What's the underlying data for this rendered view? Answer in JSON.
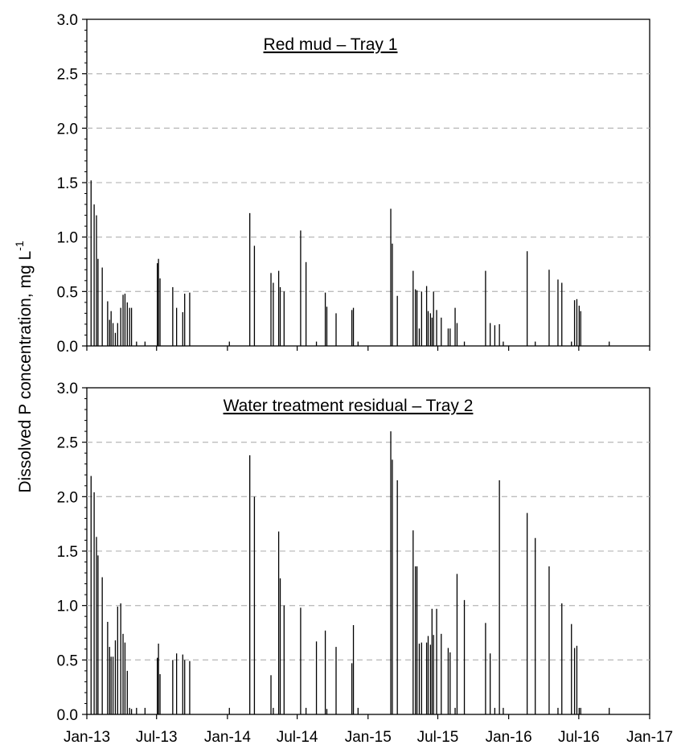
{
  "chart_data": {
    "type": "bar",
    "ylabel": "Dissolved P concentration, mg L",
    "ylabel_sup": "-1",
    "x_ticks": [
      "Jan-13",
      "Jul-13",
      "Jan-14",
      "Jul-14",
      "Jan-15",
      "Jul-15",
      "Jan-16",
      "Jul-16",
      "Jan-17"
    ],
    "x_range": [
      "2013-01-01",
      "2017-01-01"
    ],
    "ylim": [
      0,
      3.0
    ],
    "y_ticks": [
      "0.0",
      "0.5",
      "1.0",
      "1.5",
      "2.0",
      "2.5",
      "3.0"
    ],
    "grid": "dashed horizontal",
    "panels": [
      {
        "title": "Red mud – Tray 1",
        "x": [
          "2013-01-12",
          "2013-01-20",
          "2013-01-26",
          "2013-01-30",
          "2013-02-10",
          "2013-02-24",
          "2013-03-01",
          "2013-03-05",
          "2013-03-10",
          "2013-03-16",
          "2013-03-22",
          "2013-03-30",
          "2013-04-05",
          "2013-04-10",
          "2013-04-16",
          "2013-04-22",
          "2013-04-27",
          "2013-05-10",
          "2013-06-01",
          "2013-07-03",
          "2013-07-06",
          "2013-07-10",
          "2013-08-12",
          "2013-08-22",
          "2013-09-07",
          "2013-09-12",
          "2013-09-25",
          "2014-01-06",
          "2014-02-28",
          "2014-03-12",
          "2014-04-24",
          "2014-04-30",
          "2014-05-14",
          "2014-05-18",
          "2014-05-28",
          "2014-07-10",
          "2014-07-24",
          "2014-08-20",
          "2014-09-12",
          "2014-09-16",
          "2014-10-10",
          "2014-11-20",
          "2014-11-24",
          "2014-12-06",
          "2015-03-01",
          "2015-03-05",
          "2015-03-18",
          "2015-04-28",
          "2015-05-04",
          "2015-05-08",
          "2015-05-14",
          "2015-05-20",
          "2015-06-02",
          "2015-06-06",
          "2015-06-12",
          "2015-06-16",
          "2015-06-20",
          "2015-06-28",
          "2015-07-10",
          "2015-07-28",
          "2015-08-02",
          "2015-08-15",
          "2015-08-20",
          "2015-09-08",
          "2015-11-02",
          "2015-11-14",
          "2015-11-26",
          "2015-12-08",
          "2015-12-18",
          "2016-02-18",
          "2016-03-10",
          "2016-04-15",
          "2016-05-08",
          "2016-05-18",
          "2016-06-12",
          "2016-06-20",
          "2016-06-26",
          "2016-07-02",
          "2016-07-06",
          "2016-09-18"
        ],
        "values": [
          1.52,
          1.3,
          1.2,
          0.8,
          0.72,
          0.41,
          0.24,
          0.32,
          0.21,
          0.12,
          0.21,
          0.35,
          0.47,
          0.48,
          0.4,
          0.35,
          0.35,
          0.04,
          0.04,
          0.76,
          0.8,
          0.62,
          0.54,
          0.35,
          0.31,
          0.48,
          0.49,
          0.04,
          1.22,
          0.92,
          0.67,
          0.58,
          0.69,
          0.54,
          0.5,
          1.06,
          0.77,
          0.04,
          0.49,
          0.36,
          0.3,
          0.33,
          0.35,
          0.04,
          1.26,
          0.94,
          0.46,
          0.69,
          0.52,
          0.51,
          0.16,
          0.5,
          0.55,
          0.32,
          0.3,
          0.26,
          0.5,
          0.33,
          0.26,
          0.16,
          0.16,
          0.35,
          0.21,
          0.04,
          0.69,
          0.21,
          0.19,
          0.2,
          0.04,
          0.87,
          0.04,
          0.7,
          0.61,
          0.58,
          0.04,
          0.42,
          0.43,
          0.37,
          0.32,
          0.04
        ]
      },
      {
        "title": "Water treatment residual – Tray 2",
        "x": [
          "2013-01-12",
          "2013-01-20",
          "2013-01-26",
          "2013-01-30",
          "2013-02-10",
          "2013-02-24",
          "2013-03-01",
          "2013-03-05",
          "2013-03-10",
          "2013-03-16",
          "2013-03-22",
          "2013-03-30",
          "2013-04-05",
          "2013-04-10",
          "2013-04-16",
          "2013-04-22",
          "2013-04-27",
          "2013-05-10",
          "2013-06-01",
          "2013-07-03",
          "2013-07-06",
          "2013-07-10",
          "2013-08-12",
          "2013-08-22",
          "2013-09-07",
          "2013-09-12",
          "2013-09-25",
          "2014-01-06",
          "2014-02-28",
          "2014-03-12",
          "2014-04-24",
          "2014-04-30",
          "2014-05-14",
          "2014-05-18",
          "2014-05-28",
          "2014-07-10",
          "2014-07-24",
          "2014-08-20",
          "2014-09-12",
          "2014-09-16",
          "2014-10-10",
          "2014-11-20",
          "2014-11-24",
          "2014-12-06",
          "2015-03-01",
          "2015-03-05",
          "2015-03-18",
          "2015-04-28",
          "2015-05-04",
          "2015-05-08",
          "2015-05-14",
          "2015-05-20",
          "2015-06-02",
          "2015-06-06",
          "2015-06-12",
          "2015-06-16",
          "2015-06-20",
          "2015-06-28",
          "2015-07-10",
          "2015-07-28",
          "2015-08-02",
          "2015-08-15",
          "2015-08-20",
          "2015-09-08",
          "2015-11-02",
          "2015-11-14",
          "2015-11-26",
          "2015-12-08",
          "2015-12-18",
          "2016-02-18",
          "2016-03-10",
          "2016-04-15",
          "2016-05-08",
          "2016-05-18",
          "2016-06-12",
          "2016-06-20",
          "2016-06-26",
          "2016-07-02",
          "2016-07-06",
          "2016-09-18"
        ],
        "values": [
          2.19,
          2.04,
          1.63,
          1.46,
          1.26,
          0.85,
          0.62,
          0.53,
          0.53,
          0.68,
          0.99,
          1.02,
          0.74,
          0.66,
          0.4,
          0.06,
          0.05,
          0.06,
          0.06,
          0.52,
          0.65,
          0.37,
          0.5,
          0.56,
          0.55,
          0.5,
          0.49,
          0.06,
          2.38,
          2.0,
          0.36,
          0.06,
          1.68,
          1.25,
          1.0,
          0.98,
          0.06,
          0.67,
          0.77,
          0.05,
          0.62,
          0.47,
          0.82,
          0.06,
          2.6,
          2.34,
          2.15,
          1.69,
          1.36,
          1.36,
          0.65,
          0.66,
          0.66,
          0.72,
          0.64,
          0.97,
          0.73,
          0.97,
          0.74,
          0.61,
          0.57,
          0.06,
          1.29,
          1.05,
          0.84,
          0.56,
          0.06,
          2.15,
          0.06,
          1.85,
          1.62,
          1.36,
          0.06,
          1.02,
          0.83,
          0.61,
          0.63,
          0.06,
          0.06,
          0.06
        ]
      }
    ]
  }
}
